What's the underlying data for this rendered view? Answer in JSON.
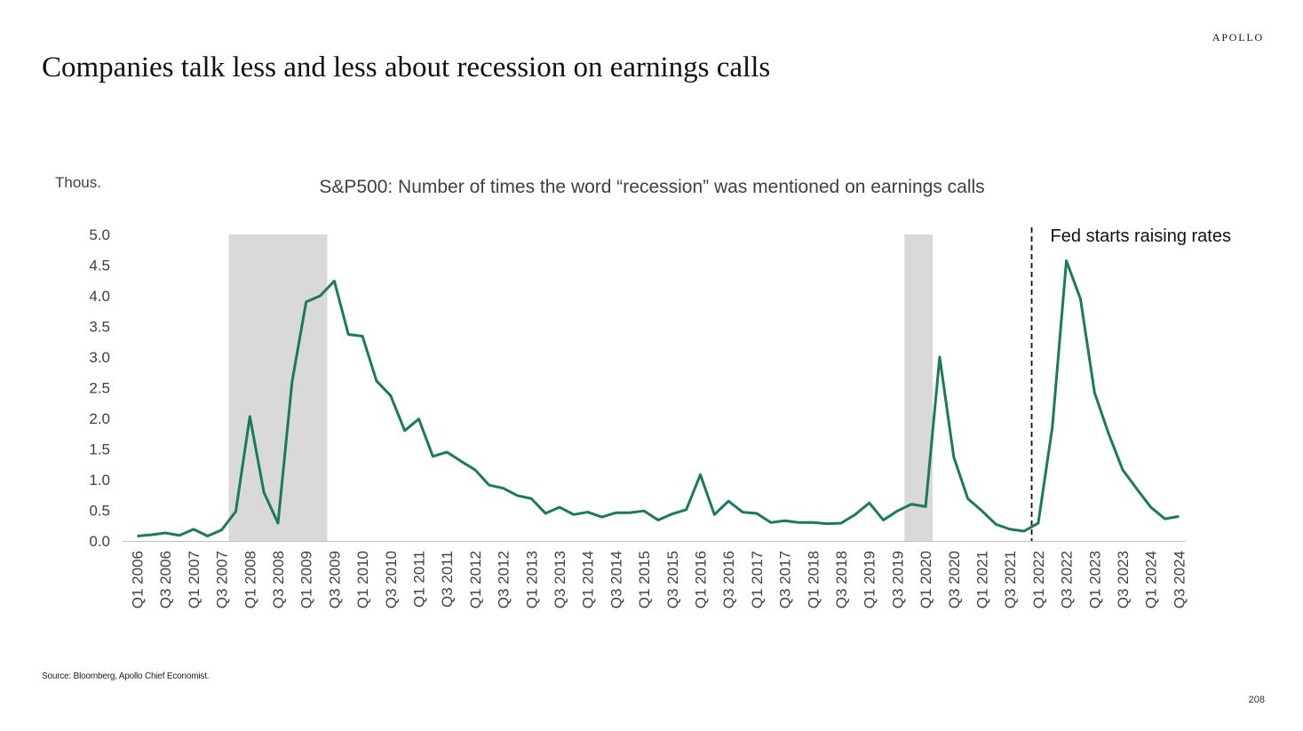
{
  "brand": "APOLLO",
  "title": "Companies talk less and less about recession on earnings calls",
  "source": "Source: Bloomberg, Apollo Chief Economist.",
  "page_number": "208",
  "colors": {
    "line": "#1a7a5e",
    "recession_shade": "#d9d9d9",
    "axis": "#bfbfbf",
    "text": "#404040"
  },
  "chart_data": {
    "type": "line",
    "title": "S&P500: Number of times the word “recession” was mentioned on earnings calls",
    "unit_label": "Thous.",
    "ylim": [
      0,
      5
    ],
    "yticks": [
      "0.0",
      "0.5",
      "1.0",
      "1.5",
      "2.0",
      "2.5",
      "3.0",
      "3.5",
      "4.0",
      "4.5",
      "5.0"
    ],
    "x": [
      "Q1 2006",
      "Q2 2006",
      "Q3 2006",
      "Q4 2006",
      "Q1 2007",
      "Q2 2007",
      "Q3 2007",
      "Q4 2007",
      "Q1 2008",
      "Q2 2008",
      "Q3 2008",
      "Q4 2008",
      "Q1 2009",
      "Q2 2009",
      "Q3 2009",
      "Q4 2009",
      "Q1 2010",
      "Q2 2010",
      "Q3 2010",
      "Q4 2010",
      "Q1 2011",
      "Q2 2011",
      "Q3 2011",
      "Q4 2011",
      "Q1 2012",
      "Q2 2012",
      "Q3 2012",
      "Q4 2012",
      "Q1 2013",
      "Q2 2013",
      "Q3 2013",
      "Q4 2013",
      "Q1 2014",
      "Q2 2014",
      "Q3 2014",
      "Q4 2014",
      "Q1 2015",
      "Q2 2015",
      "Q3 2015",
      "Q4 2015",
      "Q1 2016",
      "Q2 2016",
      "Q3 2016",
      "Q4 2016",
      "Q1 2017",
      "Q2 2017",
      "Q3 2017",
      "Q4 2017",
      "Q1 2018",
      "Q2 2018",
      "Q3 2018",
      "Q4 2018",
      "Q1 2019",
      "Q2 2019",
      "Q3 2019",
      "Q4 2019",
      "Q1 2020",
      "Q2 2020",
      "Q3 2020",
      "Q4 2020",
      "Q1 2021",
      "Q2 2021",
      "Q3 2021",
      "Q4 2021",
      "Q1 2022",
      "Q2 2022",
      "Q3 2022",
      "Q4 2022",
      "Q1 2023",
      "Q2 2023",
      "Q3 2023",
      "Q4 2023",
      "Q1 2024",
      "Q2 2024",
      "Q3 2024"
    ],
    "x_tick_labels": [
      "Q1 2006",
      "Q3 2006",
      "Q1 2007",
      "Q3 2007",
      "Q1 2008",
      "Q3 2008",
      "Q1 2009",
      "Q3 2009",
      "Q1 2010",
      "Q3 2010",
      "Q1 2011",
      "Q3 2011",
      "Q1 2012",
      "Q3 2012",
      "Q1 2013",
      "Q3 2013",
      "Q1 2014",
      "Q3 2014",
      "Q1 2015",
      "Q3 2015",
      "Q1 2016",
      "Q3 2016",
      "Q1 2017",
      "Q3 2017",
      "Q1 2018",
      "Q3 2018",
      "Q1 2019",
      "Q3 2019",
      "Q1 2020",
      "Q3 2020",
      "Q1 2021",
      "Q3 2021",
      "Q1 2022",
      "Q3 2022",
      "Q1 2023",
      "Q3 2023",
      "Q1 2024",
      "Q3 2024"
    ],
    "series": [
      {
        "name": "",
        "values": [
          0.08,
          0.1,
          0.13,
          0.09,
          0.19,
          0.08,
          0.18,
          0.48,
          2.03,
          0.79,
          0.29,
          2.6,
          3.9,
          4.0,
          4.24,
          3.37,
          3.34,
          2.61,
          2.37,
          1.8,
          1.99,
          1.38,
          1.45,
          1.3,
          1.16,
          0.91,
          0.86,
          0.74,
          0.69,
          0.45,
          0.55,
          0.43,
          0.47,
          0.39,
          0.46,
          0.46,
          0.49,
          0.34,
          0.44,
          0.51,
          1.08,
          0.43,
          0.65,
          0.47,
          0.45,
          0.3,
          0.33,
          0.3,
          0.3,
          0.28,
          0.29,
          0.43,
          0.62,
          0.34,
          0.49,
          0.6,
          0.56,
          3.0,
          1.37,
          0.69,
          0.49,
          0.27,
          0.19,
          0.16,
          0.29,
          1.85,
          4.57,
          3.95,
          2.42,
          1.75,
          1.16,
          0.85,
          0.55,
          0.36,
          0.4
        ]
      }
    ],
    "recession_periods": [
      {
        "start": "Q4 2007",
        "end": "Q2 2009"
      },
      {
        "start": "Q4 2019",
        "end": "Q1 2020"
      }
    ],
    "event_marker": {
      "at": "Q4 2021",
      "label": "Fed starts raising rates"
    },
    "grid": false,
    "legend": "none"
  }
}
